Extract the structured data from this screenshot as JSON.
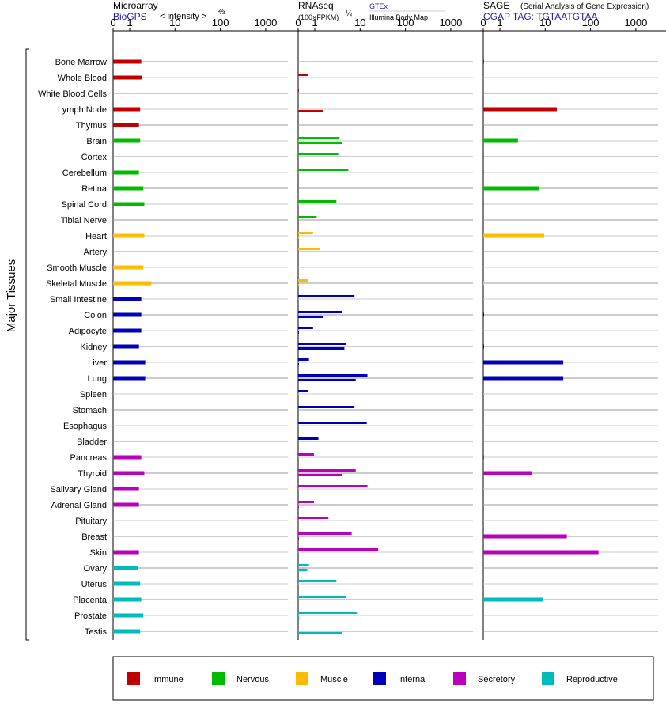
{
  "chart_data": {
    "type": "bar",
    "ylabel": "Major Tissues",
    "categories": [
      "Bone Marrow",
      "Whole Blood",
      "White Blood Cells",
      "Lymph Node",
      "Thymus",
      "Brain",
      "Cortex",
      "Cerebellum",
      "Retina",
      "Spinal Cord",
      "Tibial Nerve",
      "Heart",
      "Artery",
      "Smooth Muscle",
      "Skeletal Muscle",
      "Small Intestine",
      "Colon",
      "Adipocyte",
      "Kidney",
      "Liver",
      "Lung",
      "Spleen",
      "Stomach",
      "Esophagus",
      "Bladder",
      "Pancreas",
      "Thyroid",
      "Salivary Gland",
      "Adrenal Gland",
      "Pituitary",
      "Breast",
      "Skin",
      "Ovary",
      "Uterus",
      "Placenta",
      "Prostate",
      "Testis"
    ],
    "groups": [
      "immune",
      "immune",
      "immune",
      "immune",
      "immune",
      "nervous",
      "nervous",
      "nervous",
      "nervous",
      "nervous",
      "nervous",
      "muscle",
      "muscle",
      "muscle",
      "muscle",
      "internal",
      "internal",
      "internal",
      "internal",
      "internal",
      "internal",
      "internal",
      "internal",
      "internal",
      "internal",
      "secretory",
      "secretory",
      "secretory",
      "secretory",
      "secretory",
      "secretory",
      "secretory",
      "reproductive",
      "reproductive",
      "reproductive",
      "reproductive",
      "reproductive"
    ],
    "colors": {
      "immune": "#c00000",
      "nervous": "#00bb00",
      "muscle": "#ffbb00",
      "internal": "#0000bb",
      "secretory": "#bb00bb",
      "reproductive": "#00bbbb"
    },
    "ticks": [
      "0",
      "1",
      "10",
      "100",
      "1000"
    ],
    "panels": [
      {
        "title": "Microarray",
        "subtitle": "BioGPS",
        "note": "< intensity >",
        "exponent": "⅔",
        "values": [
          1.8,
          1.9,
          null,
          1.7,
          1.6,
          1.7,
          null,
          1.6,
          2.0,
          2.1,
          null,
          2.1,
          null,
          2.0,
          3.0,
          1.8,
          1.8,
          1.8,
          1.6,
          2.2,
          2.2,
          null,
          null,
          null,
          null,
          1.8,
          2.1,
          1.6,
          1.6,
          null,
          null,
          1.6,
          1.5,
          1.7,
          1.8,
          2.0,
          1.7
        ]
      },
      {
        "title": "RNAseq",
        "subtitle": "(100×FPKM)",
        "exponent": "½",
        "sources": [
          "GTEx",
          "Illumina Body Map"
        ],
        "values_gtex": [
          null,
          0.6,
          0.02,
          null,
          null,
          3.5,
          3.3,
          5.5,
          null,
          3.0,
          1.1,
          0.9,
          1.3,
          null,
          0.6,
          7.5,
          4.0,
          0.9,
          5.0,
          0.65,
          14.5,
          0.62,
          7.5,
          14.0,
          1.2,
          0.95,
          8.0,
          14.5,
          0.95,
          2.0,
          6.5,
          25.0,
          0.65,
          3.0,
          5.0,
          8.5,
          null
        ],
        "values_ibm": [
          null,
          null,
          null,
          1.5,
          null,
          4.0,
          null,
          null,
          null,
          null,
          null,
          0.02,
          null,
          null,
          0.02,
          null,
          1.5,
          0.02,
          4.5,
          0.02,
          8.0,
          null,
          null,
          null,
          null,
          null,
          4.0,
          null,
          0.02,
          null,
          0.02,
          null,
          0.55,
          null,
          null,
          0.02,
          4.0
        ]
      },
      {
        "title": "SAGE",
        "subtitle": "CGAP TAG: TGTAATGTAA",
        "note": "(Serial Analysis of Gene Expression)",
        "values": [
          0.02,
          null,
          null,
          18,
          null,
          2.5,
          0.01,
          0.01,
          7.5,
          0.01,
          null,
          9.5,
          null,
          null,
          0.01,
          null,
          0.02,
          null,
          0.02,
          25,
          25,
          null,
          null,
          null,
          null,
          0.02,
          5.0,
          null,
          null,
          null,
          30,
          150,
          null,
          null,
          9.0,
          0.01,
          null
        ]
      }
    ],
    "legend": [
      {
        "key": "immune",
        "label": "Immune"
      },
      {
        "key": "nervous",
        "label": "Nervous"
      },
      {
        "key": "muscle",
        "label": "Muscle"
      },
      {
        "key": "internal",
        "label": "Internal"
      },
      {
        "key": "secretory",
        "label": "Secretory"
      },
      {
        "key": "reproductive",
        "label": "Reproductive"
      }
    ]
  }
}
